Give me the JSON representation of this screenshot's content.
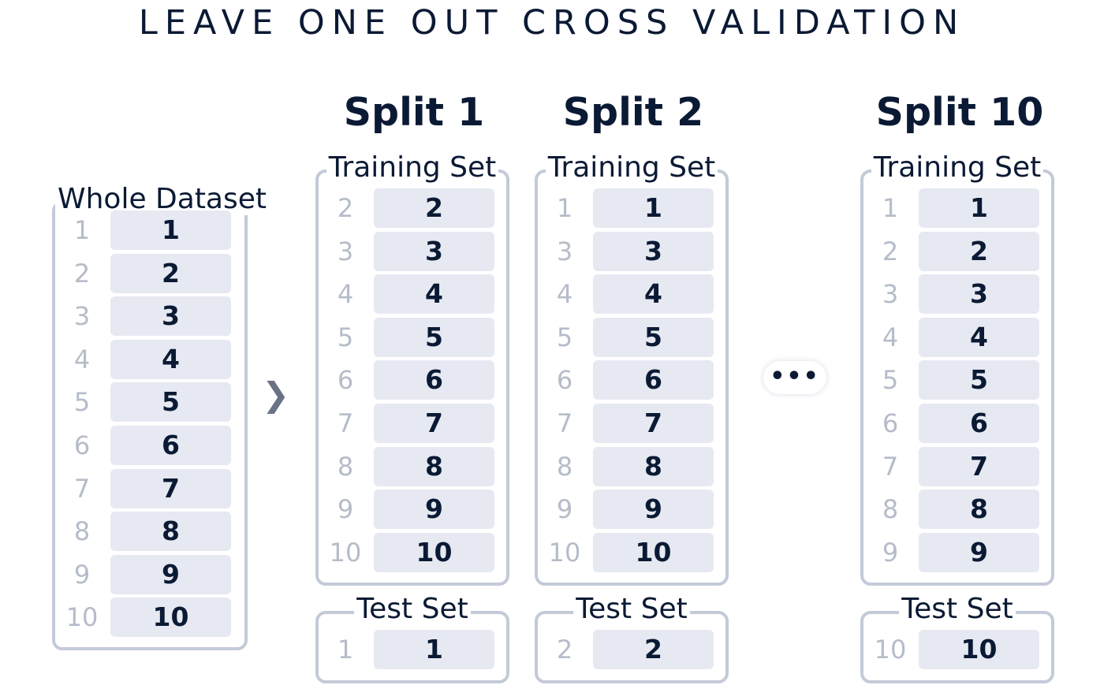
{
  "title": "LEAVE ONE OUT CROSS VALIDATION",
  "whole": {
    "label": "Whole Dataset",
    "rows": [
      {
        "index": "1",
        "value": "1"
      },
      {
        "index": "2",
        "value": "2"
      },
      {
        "index": "3",
        "value": "3"
      },
      {
        "index": "4",
        "value": "4"
      },
      {
        "index": "5",
        "value": "5"
      },
      {
        "index": "6",
        "value": "6"
      },
      {
        "index": "7",
        "value": "7"
      },
      {
        "index": "8",
        "value": "8"
      },
      {
        "index": "9",
        "value": "9"
      },
      {
        "index": "10",
        "value": "10"
      }
    ]
  },
  "arrow_icon": "chevron-right-icon",
  "ellipsis": "•••",
  "splits": [
    {
      "title": "Split 1",
      "train_label": "Training Set",
      "train_rows": [
        {
          "index": "2",
          "value": "2"
        },
        {
          "index": "3",
          "value": "3"
        },
        {
          "index": "4",
          "value": "4"
        },
        {
          "index": "5",
          "value": "5"
        },
        {
          "index": "6",
          "value": "6"
        },
        {
          "index": "7",
          "value": "7"
        },
        {
          "index": "8",
          "value": "8"
        },
        {
          "index": "9",
          "value": "9"
        },
        {
          "index": "10",
          "value": "10"
        }
      ],
      "test_label": "Test Set",
      "test_rows": [
        {
          "index": "1",
          "value": "1"
        }
      ]
    },
    {
      "title": "Split 2",
      "train_label": "Training Set",
      "train_rows": [
        {
          "index": "1",
          "value": "1"
        },
        {
          "index": "3",
          "value": "3"
        },
        {
          "index": "4",
          "value": "4"
        },
        {
          "index": "5",
          "value": "5"
        },
        {
          "index": "6",
          "value": "6"
        },
        {
          "index": "7",
          "value": "7"
        },
        {
          "index": "8",
          "value": "8"
        },
        {
          "index": "9",
          "value": "9"
        },
        {
          "index": "10",
          "value": "10"
        }
      ],
      "test_label": "Test Set",
      "test_rows": [
        {
          "index": "2",
          "value": "2"
        }
      ]
    },
    {
      "title": "Split 10",
      "train_label": "Training Set",
      "train_rows": [
        {
          "index": "1",
          "value": "1"
        },
        {
          "index": "2",
          "value": "2"
        },
        {
          "index": "3",
          "value": "3"
        },
        {
          "index": "4",
          "value": "4"
        },
        {
          "index": "5",
          "value": "5"
        },
        {
          "index": "6",
          "value": "6"
        },
        {
          "index": "7",
          "value": "7"
        },
        {
          "index": "8",
          "value": "8"
        },
        {
          "index": "9",
          "value": "9"
        }
      ],
      "test_label": "Test Set",
      "test_rows": [
        {
          "index": "10",
          "value": "10"
        }
      ]
    }
  ]
}
